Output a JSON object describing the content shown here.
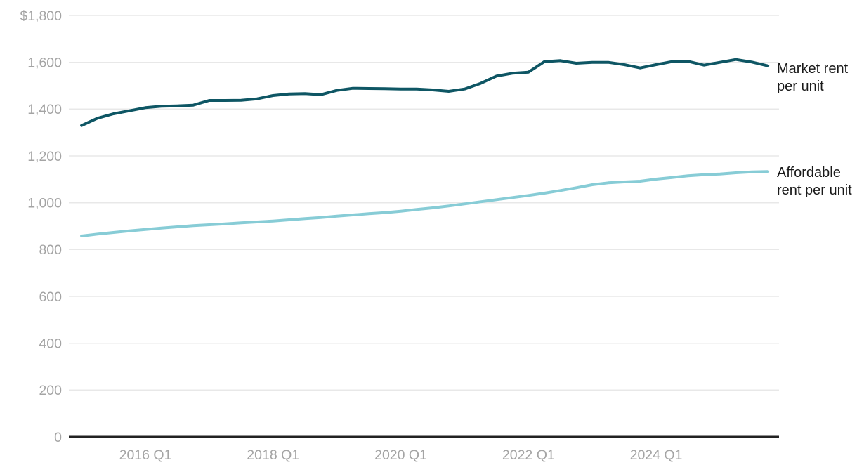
{
  "chart_data": {
    "type": "line",
    "title": "",
    "x_unit": "quarter",
    "categories": [
      "2015 Q1",
      "2015 Q2",
      "2015 Q3",
      "2015 Q4",
      "2016 Q1",
      "2016 Q2",
      "2016 Q3",
      "2016 Q4",
      "2017 Q1",
      "2017 Q2",
      "2017 Q3",
      "2017 Q4",
      "2018 Q1",
      "2018 Q2",
      "2018 Q3",
      "2018 Q4",
      "2019 Q1",
      "2019 Q2",
      "2019 Q3",
      "2019 Q4",
      "2020 Q1",
      "2020 Q2",
      "2020 Q3",
      "2020 Q4",
      "2021 Q1",
      "2021 Q2",
      "2021 Q3",
      "2021 Q4",
      "2022 Q1",
      "2022 Q2",
      "2022 Q3",
      "2022 Q4",
      "2023 Q1",
      "2023 Q2",
      "2023 Q3",
      "2023 Q4",
      "2024 Q1",
      "2024 Q2",
      "2024 Q3",
      "2024 Q4",
      "2025 Q1",
      "2025 Q2",
      "2025 Q3",
      "2025 Q4"
    ],
    "series": [
      {
        "name": "Market rent per unit",
        "label": "Market rent per unit",
        "color": "#0e5664",
        "values": [
          1330,
          1361,
          1380,
          1393,
          1406,
          1412,
          1414,
          1417,
          1437,
          1437,
          1438,
          1444,
          1458,
          1465,
          1466,
          1462,
          1480,
          1489,
          1488,
          1487,
          1486,
          1486,
          1482,
          1476,
          1486,
          1510,
          1541,
          1553,
          1558,
          1603,
          1607,
          1596,
          1600,
          1600,
          1590,
          1576,
          1590,
          1603,
          1604,
          1588,
          1600,
          1612,
          1601,
          1585
        ]
      },
      {
        "name": "Affordable rent per unit",
        "label": "Affordable rent per unit",
        "color": "#87ccd6",
        "values": [
          858,
          866,
          873,
          880,
          886,
          892,
          897,
          902,
          906,
          910,
          914,
          918,
          922,
          927,
          932,
          937,
          943,
          948,
          953,
          958,
          964,
          971,
          978,
          986,
          995,
          1004,
          1013,
          1022,
          1031,
          1041,
          1052,
          1064,
          1077,
          1085,
          1089,
          1092,
          1101,
          1108,
          1115,
          1120,
          1123,
          1128,
          1132,
          1133
        ]
      }
    ],
    "y_axis": {
      "min": 0,
      "max": 1800,
      "grid": true,
      "ticks": [
        {
          "value": 1800,
          "label": "$1,800"
        },
        {
          "value": 1600,
          "label": "1,600"
        },
        {
          "value": 1400,
          "label": "1,400"
        },
        {
          "value": 1200,
          "label": "1,200"
        },
        {
          "value": 1000,
          "label": "1,000"
        },
        {
          "value": 800,
          "label": "800"
        },
        {
          "value": 600,
          "label": "600"
        },
        {
          "value": 400,
          "label": "400"
        },
        {
          "value": 200,
          "label": "200"
        },
        {
          "value": 0,
          "label": "0"
        }
      ]
    },
    "x_axis": {
      "ticks": [
        {
          "label": "2016 Q1",
          "quarter_index": 4
        },
        {
          "label": "2018 Q1",
          "quarter_index": 12
        },
        {
          "label": "2020 Q1",
          "quarter_index": 20
        },
        {
          "label": "2022 Q1",
          "quarter_index": 28
        },
        {
          "label": "2024 Q1",
          "quarter_index": 36
        }
      ]
    },
    "legend_position": "right-of-line-ends",
    "colors": {
      "grid": "#e8e8e8",
      "axis_line": "#222222",
      "tick_label": "#a4a4a4",
      "series_label_text": "#1a1a1a",
      "background": "#ffffff"
    }
  }
}
